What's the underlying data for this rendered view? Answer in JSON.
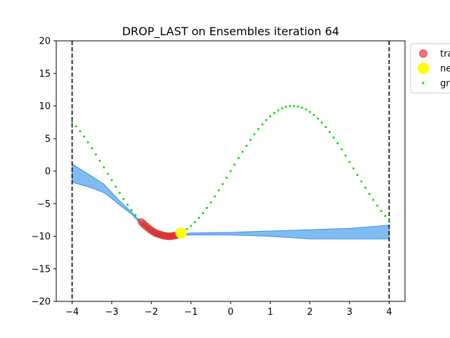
{
  "chart_data": {
    "type": "line",
    "title": "DROP_LAST on Ensembles iteration 64",
    "xlabel": "",
    "ylabel": "",
    "xlim": [
      -4.4,
      4.4
    ],
    "ylim": [
      -20,
      20
    ],
    "xticks": [
      -4,
      -3,
      -2,
      -1,
      0,
      1,
      2,
      3,
      4
    ],
    "yticks": [
      -20,
      -15,
      -10,
      -5,
      0,
      5,
      10,
      15,
      20
    ],
    "xtick_labels": [
      "−4",
      "−3",
      "−2",
      "−1",
      "0",
      "1",
      "2",
      "3",
      "4"
    ],
    "ytick_labels": [
      "−20",
      "−15",
      "−10",
      "−5",
      "0",
      "5",
      "10",
      "15",
      "20"
    ],
    "grid": false,
    "legend_position": "outside-upper-right",
    "legend": [
      {
        "label": "tra",
        "marker": "circle",
        "color": "#e8393b"
      },
      {
        "label": "ne",
        "marker": "circle",
        "color": "#ffff00"
      },
      {
        "label": "gr",
        "marker": "dot",
        "color": "#00dd00"
      }
    ],
    "domain_lines": {
      "x": [
        -4,
        4
      ],
      "style": "dashed",
      "color": "#000000"
    },
    "ground_truth": {
      "name": "gr",
      "function": "10*sin(x)",
      "x_range": [
        -4,
        4
      ],
      "count": 81,
      "color": "#00dd00"
    },
    "uncertainty_band": {
      "color": "#6ab0f0",
      "x": [
        -4.0,
        -3.5,
        -3.2,
        -3.0,
        -2.8,
        -2.5,
        -2.3,
        -2.0,
        -1.8,
        -1.6,
        -1.4,
        -1.25,
        -1.0,
        0.0,
        1.0,
        2.0,
        3.0,
        4.0
      ],
      "upper": [
        1.1,
        -0.8,
        -2.0,
        -3.3,
        -4.6,
        -6.3,
        -7.6,
        -9.1,
        -9.7,
        -9.9,
        -9.8,
        -9.6,
        -9.5,
        -9.4,
        -9.2,
        -9.0,
        -8.8,
        -8.3
      ],
      "lower": [
        -1.7,
        -2.6,
        -3.3,
        -4.2,
        -5.2,
        -6.6,
        -7.9,
        -9.4,
        -10.0,
        -10.2,
        -10.1,
        -9.9,
        -9.8,
        -9.8,
        -10.0,
        -10.4,
        -10.4,
        -10.4
      ]
    },
    "train_points": {
      "name": "tra",
      "color": "#e8393b",
      "x": [
        -2.25,
        -2.2,
        -2.15,
        -2.1,
        -2.05,
        -2.0,
        -1.95,
        -1.9,
        -1.85,
        -1.8,
        -1.75,
        -1.7,
        -1.65,
        -1.6,
        -1.55,
        -1.5,
        -1.45,
        -1.4,
        -1.35,
        -1.3,
        -1.25
      ],
      "y": [
        -7.8,
        -8.1,
        -8.4,
        -8.6,
        -8.9,
        -9.1,
        -9.3,
        -9.5,
        -9.6,
        -9.7,
        -9.8,
        -9.9,
        -9.95,
        -10.0,
        -10.0,
        -10.0,
        -9.95,
        -9.9,
        -9.8,
        -9.7,
        -9.6
      ]
    },
    "new_point": {
      "name": "ne",
      "color": "#ffff00",
      "x": -1.25,
      "y": -9.5
    }
  }
}
